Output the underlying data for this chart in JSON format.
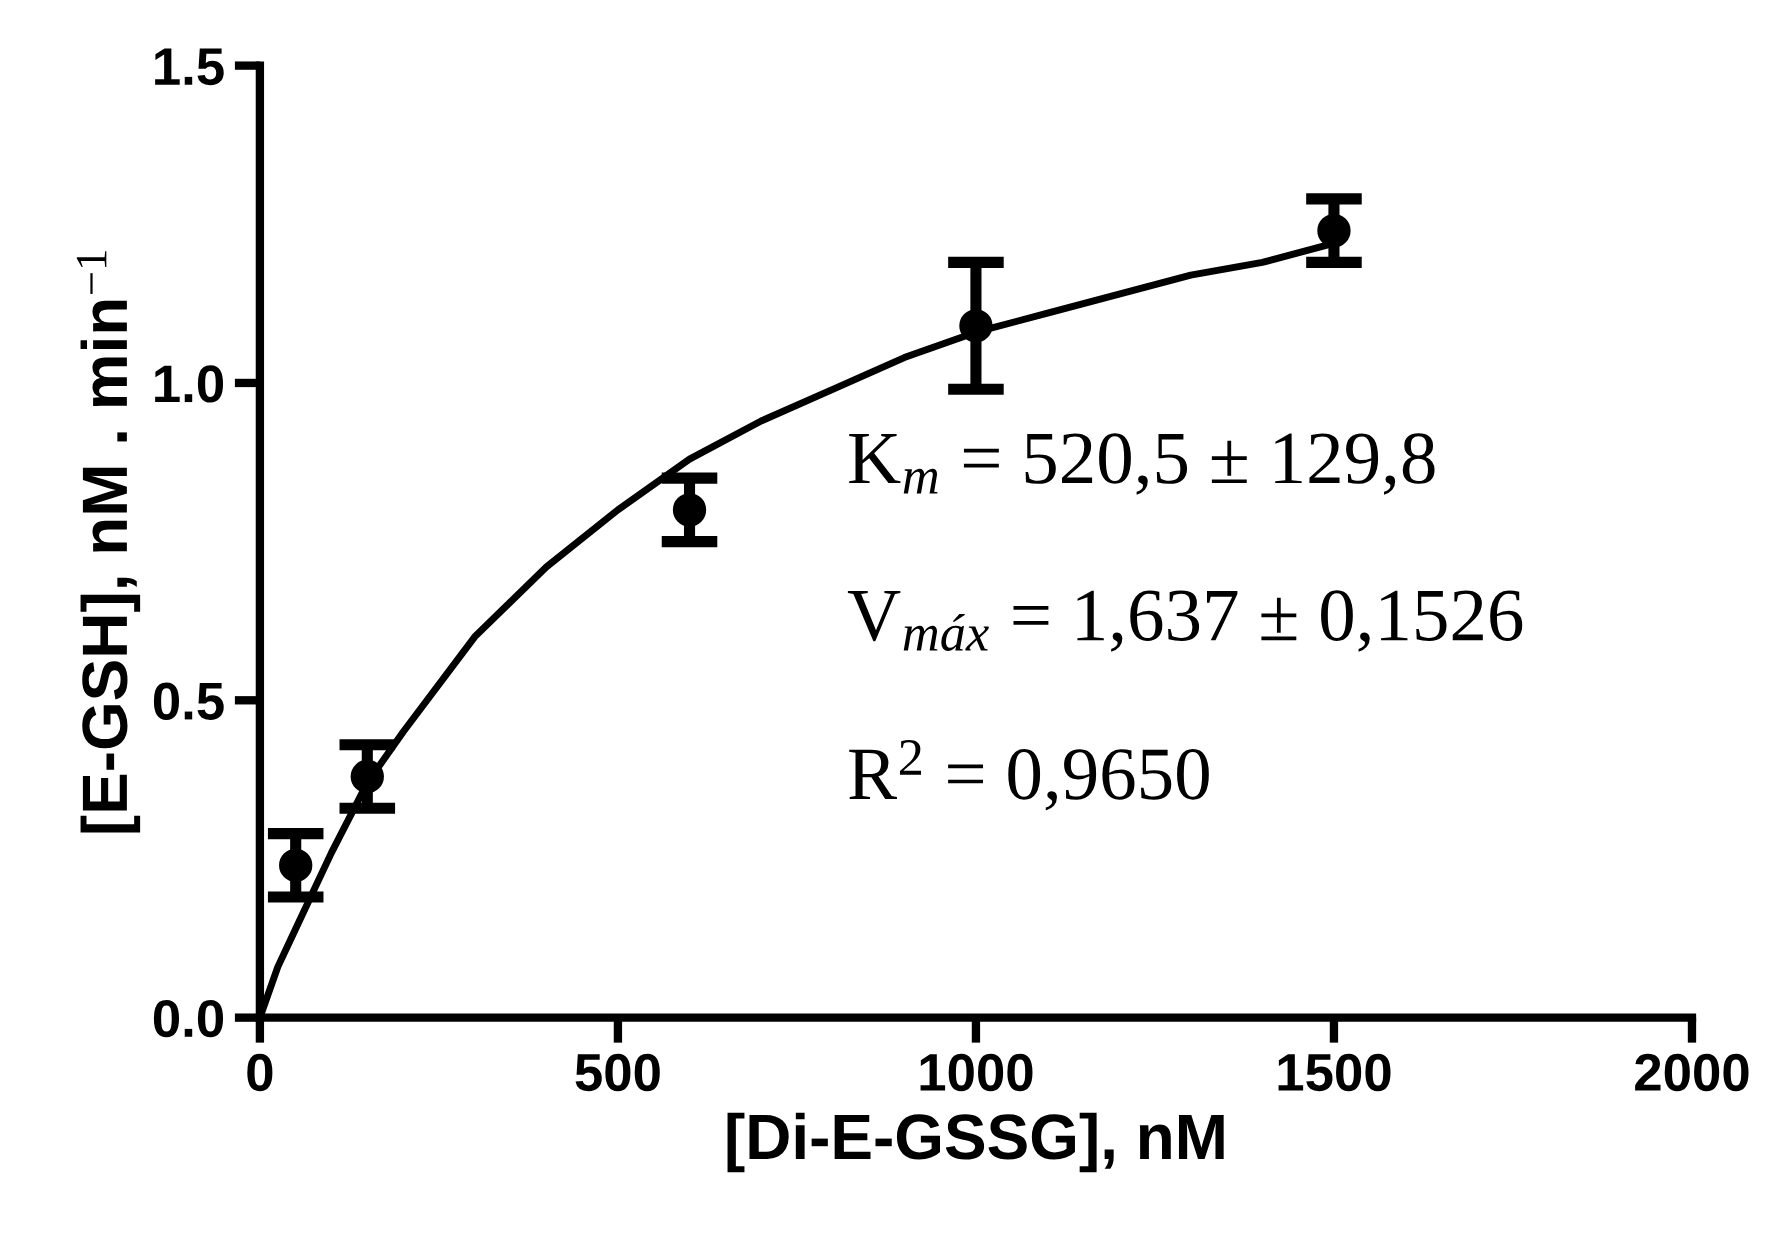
{
  "chart_data": {
    "type": "scatter",
    "xlabel": "[Di-E-GSSG], nM",
    "ylabel": "[E-GSH], nM . min$^{−1}$",
    "xlim": [
      0,
      2000
    ],
    "xticks": [
      0,
      500,
      1000,
      1500,
      2000
    ],
    "ylim": [
      0,
      1.5
    ],
    "yticks": [
      {
        "value": 0,
        "label": "0.0"
      },
      0.5,
      {
        "value": 1,
        "label": "1.0"
      },
      1.5
    ],
    "grid": false,
    "marker": "circle",
    "series": [
      {
        "color": "#000000",
        "x": [
          50,
          150,
          600,
          1000,
          1500
        ],
        "values": [
          0.24,
          0.38,
          0.8,
          1.09,
          1.24
        ],
        "errors": [
          0.05,
          0.05,
          0.05,
          0.1,
          0.05
        ]
      },
      {
        "type": "line",
        "color": "#000000",
        "marker": "none",
        "line_style": "solid",
        "x": [
          0,
          25,
          50,
          100,
          150,
          200,
          300,
          400,
          500,
          600,
          700,
          800,
          900,
          1000,
          1100,
          1200,
          1300,
          1400,
          1500
        ],
        "values": [
          0,
          0.08,
          0.14,
          0.26,
          0.37,
          0.45,
          0.6,
          0.71,
          0.8,
          0.88,
          0.94,
          0.99,
          1.04,
          1.08,
          1.11,
          1.14,
          1.17,
          1.19,
          1.22
        ]
      }
    ],
    "annotations": [
      "K$_{m}$ = 520,5 ± 129,8",
      "V$_{máx}$ = 1,637 ± 0,1526",
      "R$^{2}$ = 0,9650"
    ]
  }
}
